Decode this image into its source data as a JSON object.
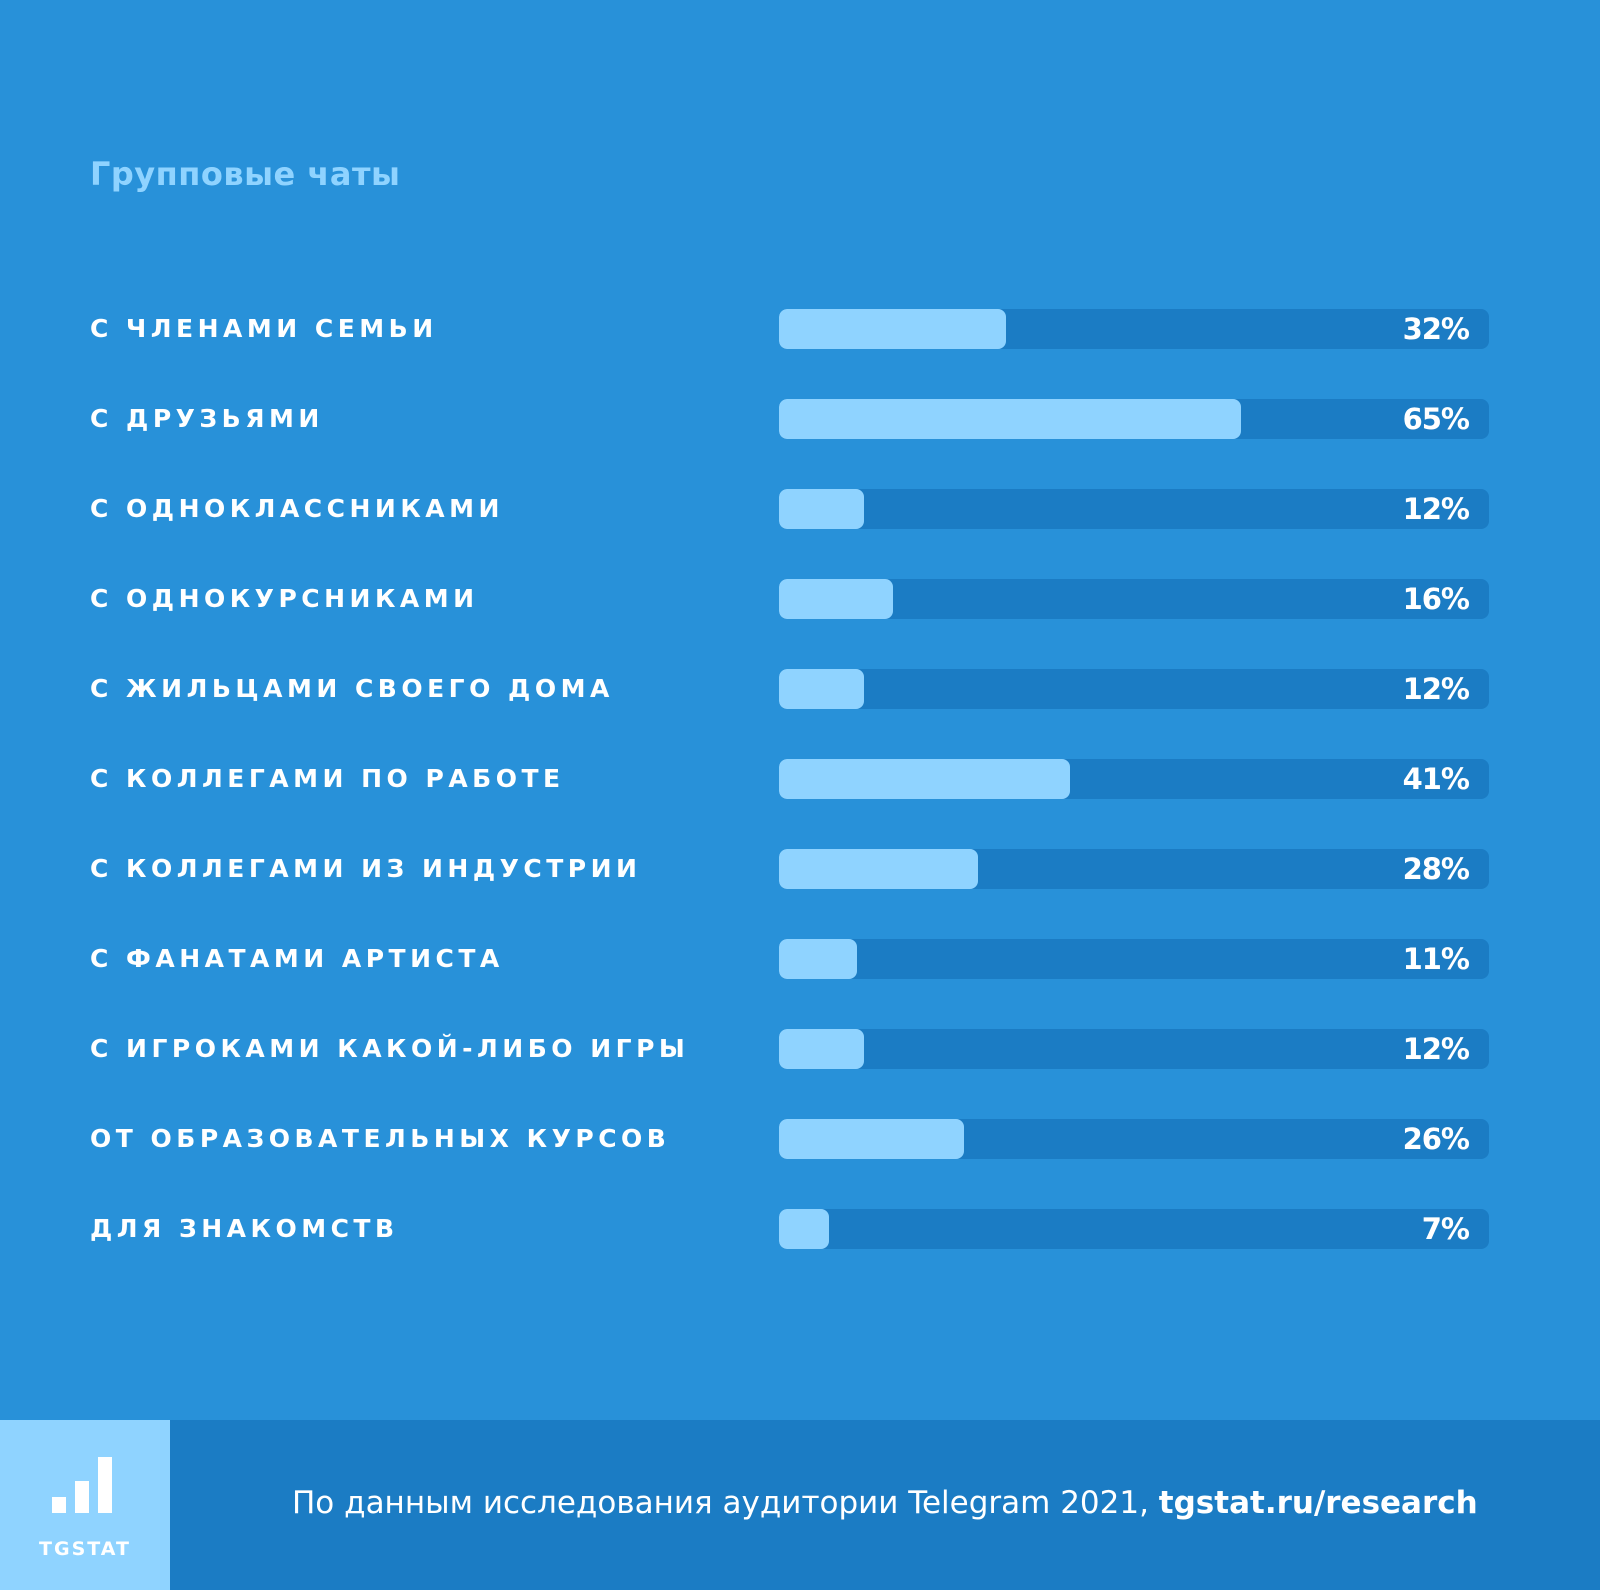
{
  "chart_data": {
    "type": "bar",
    "orientation": "horizontal",
    "title": "Групповые чаты",
    "categories": [
      "с членами семьи",
      "с друзьями",
      "с одноклассниками",
      "с однокурсниками",
      "с жильцами своего дома",
      "с коллегами по работе",
      "с коллегами из индустрии",
      "с фанатами артиста",
      "с игроками какой-либо игры",
      "от образовательных курсов",
      "для знакомств"
    ],
    "values": [
      32,
      65,
      12,
      16,
      12,
      41,
      28,
      11,
      12,
      26,
      7
    ],
    "value_labels": [
      "32%",
      "65%",
      "12%",
      "16%",
      "12%",
      "41%",
      "28%",
      "11%",
      "12%",
      "26%",
      "7%"
    ],
    "unit": "%",
    "xlim": [
      0,
      100
    ],
    "grid": false,
    "legend": "none"
  },
  "footer": {
    "logo_text": "TGSTAT",
    "source_text": "По данным исследования аудитории Telegram 2021, ",
    "source_link": "tgstat.ru/research"
  },
  "colors": {
    "background": "#2891d9",
    "bar_track": "#1b7cc4",
    "bar_fill": "#8fd3ff",
    "title": "#8fd3ff",
    "text": "#ffffff",
    "logo_box": "#8fd3ff"
  },
  "icons": {
    "logo": "bar-chart-logo-icon"
  }
}
